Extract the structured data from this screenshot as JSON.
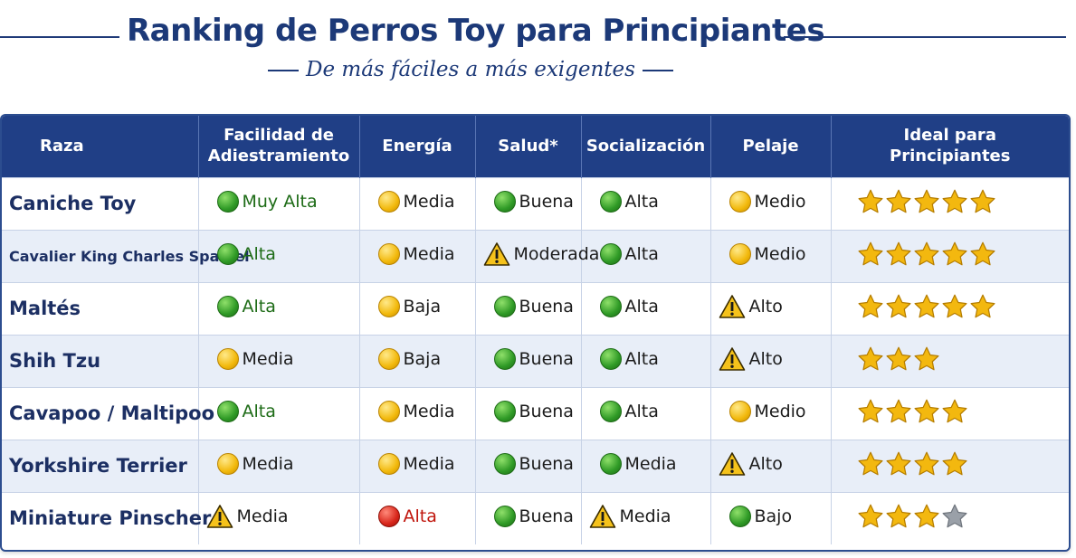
{
  "header": {
    "title": "Ranking de Perros Toy para Principiantes",
    "subtitle": "De más fáciles a más exigentes"
  },
  "table": {
    "columns": [
      "Raza",
      "Facilidad de Adiestramiento",
      "Energía",
      "Salud*",
      "Socialización",
      "Pelaje",
      "Ideal para Principiantes"
    ],
    "rows": [
      {
        "breed": "Caniche Toy",
        "cells": [
          {
            "icon": "green",
            "text": "Muy Alta",
            "style": "green-text"
          },
          {
            "icon": "yellow",
            "text": "Media"
          },
          {
            "icon": "green",
            "text": "Buena"
          },
          {
            "icon": "green",
            "text": "Alta"
          },
          {
            "icon": "yellow",
            "text": "Medio"
          }
        ],
        "stars": 5
      },
      {
        "breed": "Cavalier King Charles Spaniel",
        "cells": [
          {
            "icon": "green",
            "text": "Alta",
            "style": "green-text"
          },
          {
            "icon": "yellow",
            "text": "Media"
          },
          {
            "icon": "warning",
            "text": "Moderada",
            "sup": "**"
          },
          {
            "icon": "green",
            "text": "Alta"
          },
          {
            "icon": "yellow",
            "text": "Medio"
          }
        ],
        "stars": 5
      },
      {
        "breed": "Maltés",
        "cells": [
          {
            "icon": "green",
            "text": "Alta",
            "style": "green-text"
          },
          {
            "icon": "yellow",
            "text": "Baja"
          },
          {
            "icon": "green",
            "text": "Buena"
          },
          {
            "icon": "green",
            "text": "Alta"
          },
          {
            "icon": "warning",
            "text": "Alto"
          }
        ],
        "stars": 5
      },
      {
        "breed": "Shih Tzu",
        "cells": [
          {
            "icon": "yellow",
            "text": "Media"
          },
          {
            "icon": "yellow",
            "text": "Baja"
          },
          {
            "icon": "green",
            "text": "Buena"
          },
          {
            "icon": "green",
            "text": "Alta"
          },
          {
            "icon": "warning",
            "text": "Alto"
          }
        ],
        "stars": 3
      },
      {
        "breed": "Cavapoo / Maltipoo",
        "cells": [
          {
            "icon": "green",
            "text": "Alta",
            "style": "green-text"
          },
          {
            "icon": "yellow",
            "text": "Media"
          },
          {
            "icon": "green",
            "text": "Buena"
          },
          {
            "icon": "green",
            "text": "Alta"
          },
          {
            "icon": "yellow",
            "text": "Medio"
          }
        ],
        "stars": 4
      },
      {
        "breed": "Yorkshire Terrier",
        "cells": [
          {
            "icon": "yellow",
            "text": "Media"
          },
          {
            "icon": "yellow",
            "text": "Media"
          },
          {
            "icon": "green",
            "text": "Buena"
          },
          {
            "icon": "green",
            "text": "Media"
          },
          {
            "icon": "warning",
            "text": "Alto"
          }
        ],
        "stars": 4
      },
      {
        "breed": "Miniature Pinscher",
        "cells": [
          {
            "icon": "warning",
            "text": "Media"
          },
          {
            "icon": "red",
            "text": "Alta",
            "style": "red-text"
          },
          {
            "icon": "green",
            "text": "Buena"
          },
          {
            "icon": "warning",
            "text": "Media"
          },
          {
            "icon": "green",
            "text": "Bajo"
          }
        ],
        "stars": 3,
        "stars_gray": 1
      }
    ]
  },
  "colors": {
    "header_bg": "#203f86",
    "title": "#1c3978",
    "alt_row": "#e8eef8",
    "star": "#f3b80f",
    "star_gray": "#9aa0a8"
  }
}
